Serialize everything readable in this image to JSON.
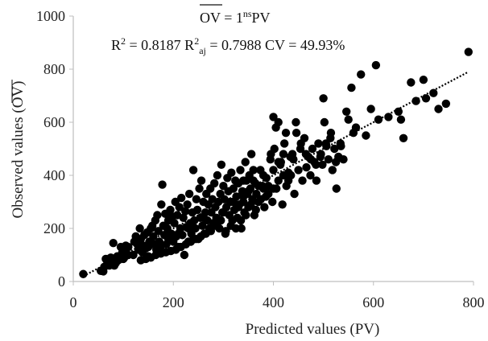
{
  "chart_data": {
    "type": "scatter",
    "xlabel": "Predicted values (PV)",
    "ylabel": "Observed values (OV)",
    "xlim": [
      0,
      800
    ],
    "ylim": [
      0,
      1000
    ],
    "x_ticks": [
      0,
      200,
      400,
      600,
      800
    ],
    "y_ticks": [
      0,
      200,
      400,
      600,
      800,
      1000
    ],
    "grid": false,
    "legend": "none",
    "marker_color": "#000000",
    "trendline": {
      "style": "dotted",
      "color": "#000000",
      "from": [
        20,
        20
      ],
      "to": [
        790,
        790
      ]
    },
    "annotations": [
      "OV = 1nsPV",
      "R² = 0.8187 R²aj = 0.7988 CV = 49.93%"
    ],
    "equation": {
      "lhs": "OV",
      "equals": " = 1",
      "superscript": "ns",
      "rhs": "PV"
    },
    "stats": {
      "r2": "R",
      "r2_value": " = 0.8187 R",
      "r2aj_sub": "aj",
      "r2aj_value": " = 0.7988 CV = 49.93%"
    },
    "points": [
      [
        20,
        28
      ],
      [
        55,
        40
      ],
      [
        60,
        38
      ],
      [
        62,
        55
      ],
      [
        65,
        85
      ],
      [
        68,
        75
      ],
      [
        72,
        60
      ],
      [
        75,
        90
      ],
      [
        78,
        85
      ],
      [
        80,
        145
      ],
      [
        82,
        60
      ],
      [
        85,
        70
      ],
      [
        88,
        95
      ],
      [
        90,
        80
      ],
      [
        95,
        130
      ],
      [
        98,
        110
      ],
      [
        100,
        120
      ],
      [
        102,
        90
      ],
      [
        105,
        135
      ],
      [
        110,
        130
      ],
      [
        120,
        100
      ],
      [
        122,
        150
      ],
      [
        125,
        170
      ],
      [
        128,
        140
      ],
      [
        130,
        120
      ],
      [
        133,
        200
      ],
      [
        135,
        160
      ],
      [
        138,
        110
      ],
      [
        140,
        135
      ],
      [
        142,
        175
      ],
      [
        145,
        125
      ],
      [
        148,
        185
      ],
      [
        150,
        95
      ],
      [
        152,
        150
      ],
      [
        155,
        200
      ],
      [
        158,
        210
      ],
      [
        160,
        170
      ],
      [
        162,
        140
      ],
      [
        164,
        230
      ],
      [
        166,
        120
      ],
      [
        168,
        250
      ],
      [
        170,
        190
      ],
      [
        172,
        150
      ],
      [
        174,
        130
      ],
      [
        176,
        290
      ],
      [
        178,
        365
      ],
      [
        180,
        210
      ],
      [
        182,
        175
      ],
      [
        184,
        255
      ],
      [
        186,
        140
      ],
      [
        188,
        200
      ],
      [
        190,
        230
      ],
      [
        192,
        160
      ],
      [
        194,
        270
      ],
      [
        196,
        180
      ],
      [
        198,
        245
      ],
      [
        200,
        150
      ],
      [
        202,
        220
      ],
      [
        204,
        300
      ],
      [
        206,
        170
      ],
      [
        208,
        250
      ],
      [
        210,
        130
      ],
      [
        212,
        280
      ],
      [
        214,
        200
      ],
      [
        216,
        315
      ],
      [
        218,
        175
      ],
      [
        220,
        240
      ],
      [
        222,
        100
      ],
      [
        224,
        265
      ],
      [
        226,
        205
      ],
      [
        228,
        290
      ],
      [
        230,
        150
      ],
      [
        232,
        330
      ],
      [
        234,
        220
      ],
      [
        236,
        180
      ],
      [
        238,
        260
      ],
      [
        240,
        420
      ],
      [
        242,
        230
      ],
      [
        244,
        200
      ],
      [
        246,
        310
      ],
      [
        248,
        270
      ],
      [
        250,
        160
      ],
      [
        252,
        350
      ],
      [
        254,
        240
      ],
      [
        256,
        380
      ],
      [
        258,
        210
      ],
      [
        260,
        300
      ],
      [
        262,
        180
      ],
      [
        264,
        260
      ],
      [
        266,
        330
      ],
      [
        268,
        230
      ],
      [
        270,
        290
      ],
      [
        272,
        200
      ],
      [
        274,
        350
      ],
      [
        276,
        260
      ],
      [
        278,
        310
      ],
      [
        280,
        220
      ],
      [
        282,
        370
      ],
      [
        284,
        280
      ],
      [
        286,
        240
      ],
      [
        288,
        400
      ],
      [
        290,
        300
      ],
      [
        292,
        200
      ],
      [
        294,
        330
      ],
      [
        296,
        440
      ],
      [
        298,
        260
      ],
      [
        300,
        360
      ],
      [
        302,
        310
      ],
      [
        304,
        180
      ],
      [
        306,
        280
      ],
      [
        308,
        390
      ],
      [
        310,
        340
      ],
      [
        312,
        250
      ],
      [
        314,
        300
      ],
      [
        316,
        410
      ],
      [
        318,
        230
      ],
      [
        320,
        350
      ],
      [
        322,
        270
      ],
      [
        324,
        380
      ],
      [
        326,
        320
      ],
      [
        328,
        240
      ],
      [
        330,
        370
      ],
      [
        332,
        290
      ],
      [
        334,
        420
      ],
      [
        336,
        200
      ],
      [
        338,
        340
      ],
      [
        340,
        300
      ],
      [
        342,
        260
      ],
      [
        344,
        450
      ],
      [
        346,
        380
      ],
      [
        348,
        330
      ],
      [
        350,
        280
      ],
      [
        352,
        400
      ],
      [
        354,
        350
      ],
      [
        356,
        480
      ],
      [
        358,
        310
      ],
      [
        360,
        420
      ],
      [
        362,
        250
      ],
      [
        364,
        370
      ],
      [
        366,
        330
      ],
      [
        370,
        300
      ],
      [
        374,
        420
      ],
      [
        378,
        360
      ],
      [
        382,
        280
      ],
      [
        386,
        390
      ],
      [
        390,
        330
      ],
      [
        394,
        460
      ],
      [
        398,
        300
      ],
      [
        402,
        500
      ],
      [
        406,
        350
      ],
      [
        410,
        380
      ],
      [
        414,
        440
      ],
      [
        418,
        290
      ],
      [
        422,
        520
      ],
      [
        426,
        360
      ],
      [
        430,
        410
      ],
      [
        434,
        470
      ],
      [
        438,
        480
      ],
      [
        442,
        330
      ],
      [
        446,
        560
      ],
      [
        450,
        420
      ],
      [
        454,
        500
      ],
      [
        458,
        380
      ],
      [
        462,
        540
      ],
      [
        466,
        430
      ],
      [
        470,
        470
      ],
      [
        474,
        400
      ],
      [
        478,
        500
      ],
      [
        482,
        450
      ],
      [
        486,
        380
      ],
      [
        490,
        520
      ],
      [
        494,
        470
      ],
      [
        498,
        440
      ],
      [
        500,
        690
      ],
      [
        502,
        600
      ],
      [
        506,
        510
      ],
      [
        510,
        460
      ],
      [
        514,
        540
      ],
      [
        518,
        420
      ],
      [
        522,
        500
      ],
      [
        526,
        350
      ],
      [
        530,
        470
      ],
      [
        534,
        520
      ],
      [
        540,
        460
      ],
      [
        546,
        640
      ],
      [
        550,
        610
      ],
      [
        556,
        730
      ],
      [
        560,
        560
      ],
      [
        565,
        580
      ],
      [
        575,
        780
      ],
      [
        585,
        550
      ],
      [
        595,
        650
      ],
      [
        605,
        815
      ],
      [
        610,
        610
      ],
      [
        630,
        620
      ],
      [
        650,
        640
      ],
      [
        655,
        610
      ],
      [
        660,
        540
      ],
      [
        675,
        750
      ],
      [
        685,
        680
      ],
      [
        700,
        760
      ],
      [
        705,
        690
      ],
      [
        720,
        710
      ],
      [
        730,
        650
      ],
      [
        745,
        670
      ],
      [
        790,
        865
      ],
      [
        400,
        350
      ],
      [
        420,
        480
      ],
      [
        380,
        350
      ],
      [
        340,
        380
      ],
      [
        300,
        260
      ],
      [
        260,
        240
      ],
      [
        230,
        200
      ],
      [
        210,
        180
      ],
      [
        190,
        160
      ],
      [
        170,
        145
      ],
      [
        150,
        130
      ],
      [
        130,
        140
      ],
      [
        110,
        100
      ],
      [
        100,
        85
      ],
      [
        415,
        450
      ],
      [
        425,
        560
      ],
      [
        435,
        400
      ],
      [
        445,
        600
      ],
      [
        455,
        520
      ],
      [
        465,
        480
      ],
      [
        475,
        460
      ],
      [
        485,
        440
      ],
      [
        495,
        480
      ],
      [
        505,
        520
      ],
      [
        515,
        560
      ],
      [
        525,
        450
      ],
      [
        535,
        510
      ],
      [
        320,
        300
      ],
      [
        330,
        280
      ],
      [
        340,
        320
      ],
      [
        350,
        340
      ],
      [
        360,
        380
      ],
      [
        370,
        360
      ],
      [
        380,
        400
      ],
      [
        390,
        360
      ],
      [
        400,
        420
      ],
      [
        410,
        450
      ],
      [
        420,
        400
      ],
      [
        430,
        380
      ],
      [
        440,
        460
      ],
      [
        400,
        620
      ],
      [
        410,
        600
      ],
      [
        405,
        580
      ],
      [
        395,
        480
      ],
      [
        385,
        320
      ],
      [
        375,
        310
      ],
      [
        365,
        270
      ],
      [
        355,
        290
      ],
      [
        345,
        250
      ],
      [
        335,
        230
      ],
      [
        325,
        200
      ],
      [
        315,
        210
      ],
      [
        305,
        190
      ],
      [
        295,
        230
      ],
      [
        285,
        210
      ],
      [
        275,
        190
      ],
      [
        265,
        180
      ],
      [
        255,
        170
      ],
      [
        245,
        160
      ],
      [
        235,
        150
      ],
      [
        225,
        140
      ],
      [
        215,
        130
      ],
      [
        205,
        120
      ],
      [
        195,
        115
      ],
      [
        185,
        110
      ],
      [
        175,
        105
      ],
      [
        165,
        100
      ],
      [
        155,
        90
      ],
      [
        145,
        85
      ],
      [
        135,
        80
      ]
    ]
  }
}
